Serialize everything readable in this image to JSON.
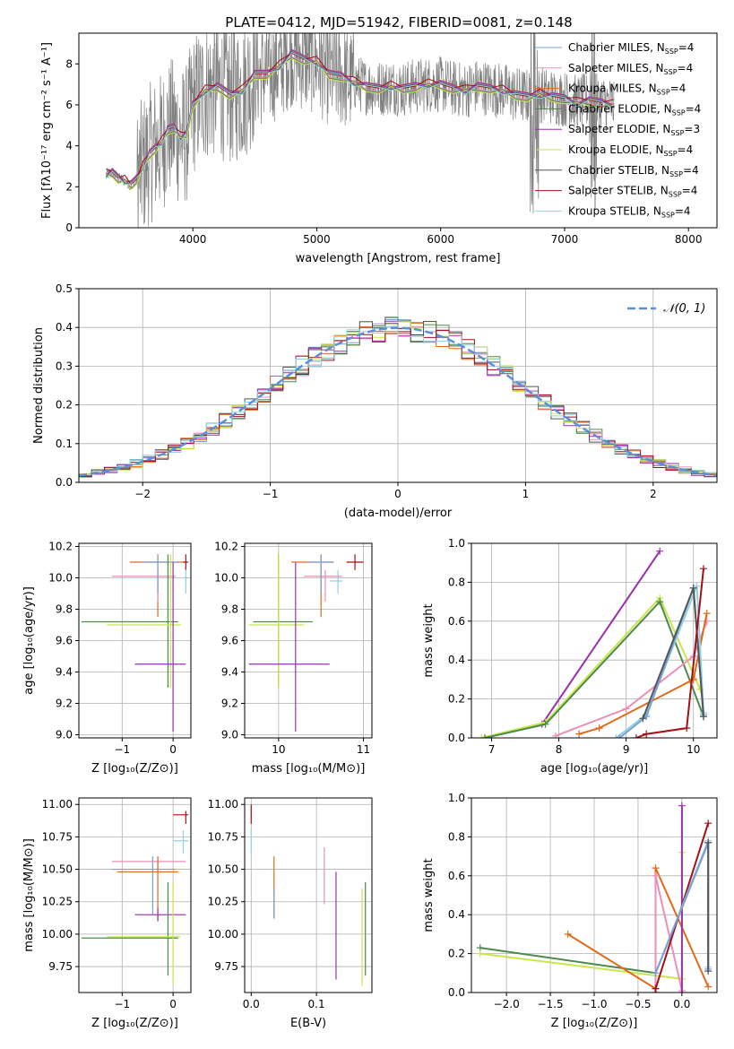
{
  "figure_title": "PLATE=0412, MJD=51942, FIBERID=0081, z=0.148",
  "colors": {
    "data": "#808080",
    "gauss": "#5b8fd8",
    "grid": "#b0b0b0",
    "series": [
      "#7a9fd6",
      "#ea8fb8",
      "#e06a1c",
      "#4d8a4d",
      "#9b2fae",
      "#c9e64a",
      "#555555",
      "#a50f15",
      "#8fd3e0"
    ]
  },
  "chart_data": [
    {
      "id": "spectrum",
      "type": "line",
      "title": "PLATE=0412, MJD=51942, FIBERID=0081, z=0.148",
      "xlabel": "wavelength [Angstrom, rest frame]",
      "ylabel": "Flux [fλ10⁻¹⁷ erg cm⁻² s⁻¹ A⁻¹]",
      "xlim": [
        3080,
        8230
      ],
      "ylim": [
        0,
        9.5
      ],
      "xticks": [
        4000,
        5000,
        6000,
        7000,
        8000
      ],
      "yticks": [
        0,
        2,
        4,
        6,
        8
      ],
      "grid": false,
      "legend_position": "top-right",
      "legend": [
        {
          "label": "Chabrier MILES, N",
          "sub": "SSP",
          "suffix": "=4"
        },
        {
          "label": "Salpeter MILES, N",
          "sub": "SSP",
          "suffix": "=4"
        },
        {
          "label": "Kroupa MILES, N",
          "sub": "SSP",
          "suffix": "=4"
        },
        {
          "label": "Chabrier ELODIE, N",
          "sub": "SSP",
          "suffix": "=4"
        },
        {
          "label": "Salpeter ELODIE, N",
          "sub": "SSP",
          "suffix": "=3"
        },
        {
          "label": "Kroupa ELODIE, N",
          "sub": "SSP",
          "suffix": "=4"
        },
        {
          "label": "Chabrier STELIB, N",
          "sub": "SSP",
          "suffix": "=4"
        },
        {
          "label": "Salpeter STELIB, N",
          "sub": "SSP",
          "suffix": "=4"
        },
        {
          "label": "Kroupa STELIB, N",
          "sub": "SSP",
          "suffix": "=4"
        }
      ],
      "model_continuum": {
        "x": [
          3300,
          3350,
          3400,
          3450,
          3500,
          3550,
          3600,
          3650,
          3700,
          3750,
          3800,
          3850,
          3900,
          3950,
          4000,
          4100,
          4200,
          4300,
          4400,
          4500,
          4600,
          4700,
          4800,
          4900,
          5000,
          5100,
          5200,
          5300,
          5400,
          5500,
          5600,
          5700,
          5800,
          5900,
          6000,
          6100,
          6200,
          6300,
          6400,
          6500,
          6600,
          6700,
          6800,
          6900,
          7000,
          7100,
          7200,
          7300,
          7400
        ],
        "y": [
          2.6,
          2.7,
          2.4,
          2.3,
          2.1,
          2.4,
          3.0,
          3.6,
          3.9,
          4.2,
          4.8,
          4.9,
          4.4,
          4.6,
          6.0,
          6.7,
          6.9,
          6.5,
          6.7,
          7.5,
          7.5,
          7.9,
          8.5,
          8.2,
          8.1,
          7.5,
          7.4,
          7.1,
          6.9,
          6.8,
          6.9,
          6.8,
          6.9,
          7.0,
          7.0,
          6.8,
          6.7,
          6.9,
          6.8,
          6.7,
          6.5,
          6.4,
          6.5,
          6.4,
          6.3,
          6.1,
          6.2,
          6.1,
          6.0
        ]
      }
    },
    {
      "id": "residuals",
      "type": "histogram",
      "xlabel": "(data-model)/error",
      "ylabel": "Normed distribution",
      "xlim": [
        -2.5,
        2.5
      ],
      "ylim": [
        0,
        0.5
      ],
      "xticks": [
        -2,
        -1,
        0,
        1,
        2
      ],
      "yticks": [
        0.0,
        0.1,
        0.2,
        0.3,
        0.4,
        0.5
      ],
      "grid": true,
      "legend_position": "top-right",
      "gauss_label": "𝒩(0, 1)",
      "gauss_mean": 0,
      "gauss_sigma": 1
    },
    {
      "id": "age_vs_Z",
      "type": "errorbar",
      "xlabel": "Z [log₁₀(Z/Z⊙)]",
      "ylabel": "age  [log₁₀(age/yr)]",
      "xlim": [
        -1.85,
        0.35
      ],
      "ylim": [
        8.98,
        10.22
      ],
      "xticks": [
        -1,
        0
      ],
      "yticks": [
        9.0,
        9.2,
        9.4,
        9.6,
        9.8,
        10.0,
        10.2
      ],
      "grid": true,
      "points": [
        {
          "x": -0.3,
          "y": 10.1,
          "xlo": -0.85,
          "xhi": 0.25,
          "ylo": 9.75,
          "yhi": 10.15,
          "c": 2
        },
        {
          "x": 0.25,
          "y": 10.1,
          "xlo": 0.2,
          "xhi": 0.3,
          "ylo": 10.05,
          "yhi": 10.15,
          "c": 7
        },
        {
          "x": 0.25,
          "y": 10.0,
          "xlo": 0.2,
          "xhi": 0.3,
          "ylo": 9.9,
          "yhi": 10.05,
          "c": 8
        },
        {
          "x": -0.3,
          "y": 10.01,
          "xlo": -1.2,
          "xhi": 0.05,
          "ylo": 9.85,
          "yhi": 10.05,
          "c": 1
        },
        {
          "x": -0.3,
          "y": 10.1,
          "xlo": -0.6,
          "xhi": 0.1,
          "ylo": 9.9,
          "yhi": 10.14,
          "c": 0
        },
        {
          "x": -0.1,
          "y": 9.72,
          "xlo": -1.8,
          "xhi": 0.1,
          "ylo": 9.3,
          "yhi": 10.15,
          "c": 3
        },
        {
          "x": -0.05,
          "y": 9.7,
          "xlo": -1.3,
          "xhi": 0.15,
          "ylo": 9.3,
          "yhi": 10.15,
          "c": 5
        },
        {
          "x": 0.0,
          "y": 9.45,
          "xlo": -0.75,
          "xhi": 0.25,
          "ylo": 9.02,
          "yhi": 10.1,
          "c": 4
        }
      ]
    },
    {
      "id": "age_vs_mass",
      "type": "errorbar",
      "xlabel": "mass [log₁₀(M/M⊙)]",
      "ylabel": "",
      "xlim": [
        9.6,
        11.1
      ],
      "ylim": [
        8.98,
        10.22
      ],
      "xticks": [
        10,
        11
      ],
      "yticks": [
        9.0,
        9.2,
        9.4,
        9.6,
        9.8,
        10.0,
        10.2
      ],
      "grid": true,
      "points": [
        {
          "x": 10.5,
          "y": 10.1,
          "xlo": 10.15,
          "xhi": 10.65,
          "ylo": 9.75,
          "yhi": 10.15,
          "c": 2
        },
        {
          "x": 10.9,
          "y": 10.1,
          "xlo": 10.8,
          "xhi": 11.0,
          "ylo": 10.05,
          "yhi": 10.15,
          "c": 7
        },
        {
          "x": 10.7,
          "y": 9.98,
          "xlo": 10.6,
          "xhi": 10.75,
          "ylo": 9.9,
          "yhi": 10.05,
          "c": 8
        },
        {
          "x": 10.55,
          "y": 10.01,
          "xlo": 10.3,
          "xhi": 10.75,
          "ylo": 9.85,
          "yhi": 10.05,
          "c": 1
        },
        {
          "x": 10.5,
          "y": 10.1,
          "xlo": 10.35,
          "xhi": 10.65,
          "ylo": 9.9,
          "yhi": 10.14,
          "c": 0
        },
        {
          "x": 10.0,
          "y": 9.72,
          "xlo": 9.7,
          "xhi": 10.4,
          "ylo": 9.3,
          "yhi": 10.15,
          "c": 3
        },
        {
          "x": 10.0,
          "y": 9.7,
          "xlo": 9.65,
          "xhi": 10.3,
          "ylo": 9.3,
          "yhi": 10.15,
          "c": 5
        },
        {
          "x": 10.2,
          "y": 9.45,
          "xlo": 9.65,
          "xhi": 10.6,
          "ylo": 9.02,
          "yhi": 10.1,
          "c": 4
        }
      ]
    },
    {
      "id": "massweight_vs_age",
      "type": "line",
      "xlabel": "age  [log₁₀(age/yr)]",
      "ylabel": "mass weight",
      "xlim": [
        6.7,
        10.35
      ],
      "ylim": [
        0,
        1.0
      ],
      "xticks": [
        7,
        8,
        9,
        10
      ],
      "yticks": [
        0.0,
        0.2,
        0.4,
        0.6,
        0.8,
        1.0
      ],
      "grid": true,
      "series": [
        {
          "c": 4,
          "x": [
            6.9,
            7.75,
            9.5
          ],
          "y": [
            0.0,
            0.07,
            0.96
          ]
        },
        {
          "c": 5,
          "x": [
            6.85,
            7.8,
            9.5,
            10.1
          ],
          "y": [
            0.0,
            0.08,
            0.72,
            0.25
          ]
        },
        {
          "c": 3,
          "x": [
            6.9,
            7.8,
            9.5,
            10.15
          ],
          "y": [
            0.0,
            0.07,
            0.7,
            0.11
          ]
        },
        {
          "c": 1,
          "x": [
            7.95,
            9.0,
            10.0,
            10.2
          ],
          "y": [
            0.01,
            0.15,
            0.42,
            0.6
          ]
        },
        {
          "c": 2,
          "x": [
            8.3,
            8.6,
            10.0,
            10.2
          ],
          "y": [
            0.02,
            0.05,
            0.3,
            0.64
          ]
        },
        {
          "c": 8,
          "x": [
            8.85,
            9.3,
            10.05,
            10.15
          ],
          "y": [
            0.0,
            0.12,
            0.78,
            0.13
          ]
        },
        {
          "c": 0,
          "x": [
            8.9,
            9.3,
            10.0,
            10.15
          ],
          "y": [
            0.0,
            0.11,
            0.77,
            0.12
          ]
        },
        {
          "c": 6,
          "x": [
            9.25,
            10.0,
            10.15
          ],
          "y": [
            0.1,
            0.77,
            0.11
          ]
        },
        {
          "c": 7,
          "x": [
            9.15,
            9.3,
            9.9,
            10.15
          ],
          "y": [
            0.0,
            0.02,
            0.05,
            0.87
          ]
        }
      ]
    },
    {
      "id": "mass_vs_Z",
      "type": "errorbar",
      "xlabel": "Z [log₁₀(Z/Z⊙)]",
      "ylabel": "mass [log₁₀(M/M⊙)]",
      "xlim": [
        -1.85,
        0.35
      ],
      "ylim": [
        9.55,
        11.05
      ],
      "xticks": [
        -1,
        0
      ],
      "yticks": [
        9.75,
        10.0,
        10.25,
        10.5,
        10.75,
        11.0
      ],
      "grid": true,
      "points": [
        {
          "x": 0.25,
          "y": 10.92,
          "xlo": 0.0,
          "xhi": 0.3,
          "ylo": 10.85,
          "yhi": 10.95,
          "c": 7
        },
        {
          "x": 0.2,
          "y": 10.72,
          "xlo": 0.0,
          "xhi": 0.3,
          "ylo": 10.62,
          "yhi": 10.8,
          "c": 8
        },
        {
          "x": -0.3,
          "y": 10.56,
          "xlo": -1.2,
          "xhi": 0.25,
          "ylo": 10.5,
          "yhi": 10.6,
          "c": 1
        },
        {
          "x": -0.4,
          "y": 10.5,
          "xlo": -1.2,
          "xhi": 0.05,
          "ylo": 10.15,
          "yhi": 10.6,
          "c": 0
        },
        {
          "x": -0.3,
          "y": 10.48,
          "xlo": -1.1,
          "xhi": 0.1,
          "ylo": 10.1,
          "yhi": 10.6,
          "c": 2
        },
        {
          "x": -0.3,
          "y": 10.15,
          "xlo": -0.75,
          "xhi": 0.25,
          "ylo": 10.1,
          "yhi": 10.2,
          "c": 4
        },
        {
          "x": -0.1,
          "y": 9.97,
          "xlo": -1.8,
          "xhi": 0.1,
          "ylo": 9.68,
          "yhi": 10.4,
          "c": 3
        },
        {
          "x": 0.0,
          "y": 9.98,
          "xlo": -1.3,
          "xhi": 0.15,
          "ylo": 9.62,
          "yhi": 10.4,
          "c": 5
        }
      ]
    },
    {
      "id": "mass_vs_ebv",
      "type": "errorbar",
      "xlabel": "E(B-V)",
      "ylabel": "",
      "xlim": [
        -0.01,
        0.185
      ],
      "ylim": [
        9.55,
        11.05
      ],
      "xticks": [
        0.0,
        0.1
      ],
      "yticks": [
        9.75,
        10.0,
        10.25,
        10.5,
        10.75,
        11.0
      ],
      "grid": true,
      "points": [
        {
          "x": 0.0,
          "y": 10.92,
          "xlo": 0.0,
          "xhi": 0.0,
          "ylo": 10.85,
          "yhi": 11.0,
          "c": 7
        },
        {
          "x": 0.0,
          "y": 10.72,
          "xlo": 0.0,
          "xhi": 0.0,
          "ylo": 10.62,
          "yhi": 10.82,
          "c": 8
        },
        {
          "x": 0.035,
          "y": 10.35,
          "xlo": 0.035,
          "xhi": 0.035,
          "ylo": 10.12,
          "yhi": 10.6,
          "c": 2
        },
        {
          "x": 0.035,
          "y": 10.3,
          "xlo": 0.035,
          "xhi": 0.035,
          "ylo": 10.12,
          "yhi": 10.35,
          "c": 0
        },
        {
          "x": 0.112,
          "y": 10.45,
          "xlo": 0.112,
          "xhi": 0.112,
          "ylo": 10.23,
          "yhi": 10.67,
          "c": 1
        },
        {
          "x": 0.13,
          "y": 10.0,
          "xlo": 0.13,
          "xhi": 0.13,
          "ylo": 9.65,
          "yhi": 10.48,
          "c": 4
        },
        {
          "x": 0.17,
          "y": 9.98,
          "xlo": 0.17,
          "xhi": 0.17,
          "ylo": 9.6,
          "yhi": 10.35,
          "c": 5
        },
        {
          "x": 0.175,
          "y": 9.97,
          "xlo": 0.175,
          "xhi": 0.175,
          "ylo": 9.68,
          "yhi": 10.4,
          "c": 3
        }
      ]
    },
    {
      "id": "massweight_vs_Z",
      "type": "line",
      "xlabel": "Z [log₁₀(Z/Z⊙)]",
      "ylabel": "mass weight",
      "xlim": [
        -2.4,
        0.4
      ],
      "ylim": [
        0,
        1.0
      ],
      "xticks": [
        -2.0,
        -1.5,
        -1.0,
        -0.5,
        0.0
      ],
      "yticks": [
        0.0,
        0.2,
        0.4,
        0.6,
        0.8,
        1.0
      ],
      "grid": true,
      "series": [
        {
          "c": 3,
          "x": [
            -2.3,
            -0.3,
            0.3
          ],
          "y": [
            0.23,
            0.1,
            0.77
          ]
        },
        {
          "c": 5,
          "x": [
            -2.3,
            0.0,
            0.0
          ],
          "y": [
            0.2,
            0.07,
            0.72
          ]
        },
        {
          "c": 2,
          "x": [
            -1.3,
            -0.3,
            -0.3,
            0.3
          ],
          "y": [
            0.3,
            0.02,
            0.64,
            0.03
          ]
        },
        {
          "c": 1,
          "x": [
            -0.3,
            -0.3,
            0.0
          ],
          "y": [
            0.02,
            0.6,
            0.01
          ]
        },
        {
          "c": 4,
          "x": [
            0.0,
            0.0
          ],
          "y": [
            0.0,
            0.96
          ]
        },
        {
          "c": 7,
          "x": [
            -0.3,
            -0.3,
            0.3
          ],
          "y": [
            0.0,
            0.02,
            0.87
          ]
        },
        {
          "c": 8,
          "x": [
            -0.3,
            0.3,
            0.3
          ],
          "y": [
            0.1,
            0.78,
            0.13
          ]
        },
        {
          "c": 0,
          "x": [
            -0.3,
            0.3,
            0.3
          ],
          "y": [
            0.1,
            0.77,
            0.12
          ]
        },
        {
          "c": 6,
          "x": [
            0.3,
            0.3
          ],
          "y": [
            0.77,
            0.11
          ]
        }
      ]
    }
  ]
}
